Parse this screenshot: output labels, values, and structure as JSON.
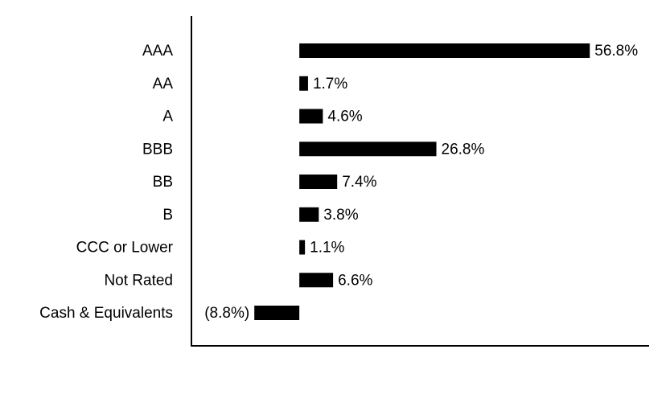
{
  "chart_data": {
    "type": "bar",
    "orientation": "horizontal",
    "categories": [
      "AAA",
      "AA",
      "A",
      "BBB",
      "BB",
      "B",
      "CCC or Lower",
      "Not Rated",
      "Cash & Equivalents"
    ],
    "values": [
      56.8,
      1.7,
      4.6,
      26.8,
      7.4,
      3.8,
      1.1,
      6.6,
      -8.8
    ],
    "value_labels": [
      "56.8%",
      "1.7%",
      "4.6%",
      "26.8%",
      "7.4%",
      "3.8%",
      "1.1%",
      "6.6%",
      "(8.8%)"
    ],
    "color": "#000000",
    "xlim": [
      -21.1,
      68.4
    ]
  }
}
